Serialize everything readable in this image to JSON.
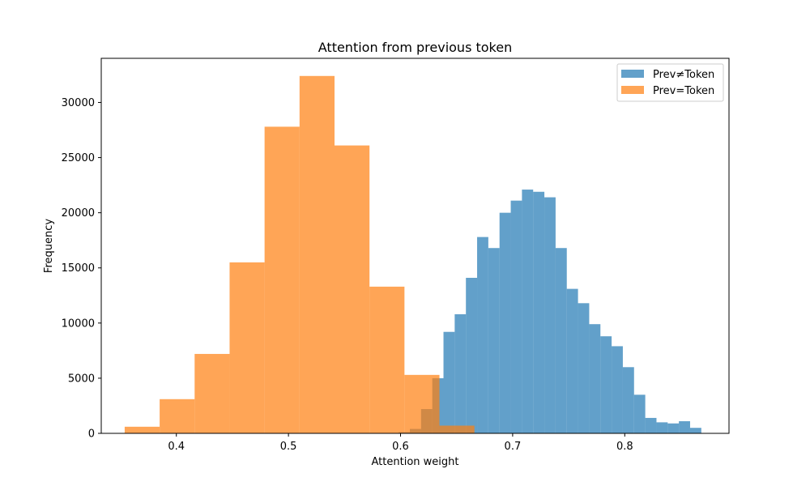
{
  "chart_data": {
    "type": "histogram",
    "title": "Attention from previous token",
    "xlabel": "Attention weight",
    "ylabel": "Frequency",
    "xlim": [
      0.333,
      0.893
    ],
    "ylim": [
      0,
      34000
    ],
    "x_ticks": [
      0.4,
      0.5,
      0.6,
      0.7,
      0.8
    ],
    "x_tick_labels": [
      "0.4",
      "0.5",
      "0.6",
      "0.7",
      "0.8"
    ],
    "y_ticks": [
      0,
      5000,
      10000,
      15000,
      20000,
      25000,
      30000
    ],
    "y_tick_labels": [
      "0",
      "5000",
      "10000",
      "15000",
      "20000",
      "25000",
      "30000"
    ],
    "grid": false,
    "legend_position": "top-right",
    "series": [
      {
        "name": "Prev≠Token",
        "color": "#1f77b4",
        "opacity": 0.7,
        "bin_edges": [
          0.5983,
          0.6083,
          0.6183,
          0.6283,
          0.6383,
          0.6483,
          0.6583,
          0.6683,
          0.6783,
          0.6883,
          0.6983,
          0.7083,
          0.7183,
          0.7283,
          0.7383,
          0.7483,
          0.7583,
          0.7683,
          0.7783,
          0.7883,
          0.7983,
          0.8083,
          0.8183,
          0.8283,
          0.8383,
          0.8483,
          0.8583,
          0.8683
        ],
        "counts": [
          100,
          400,
          2200,
          5000,
          9200,
          10800,
          14100,
          17800,
          16800,
          20000,
          21100,
          22100,
          21900,
          21400,
          16800,
          13100,
          11800,
          9900,
          8800,
          7900,
          6000,
          3500,
          1400,
          1000,
          900,
          1100,
          500
        ]
      },
      {
        "name": "Prev=Token",
        "color": "#ff7f0e",
        "opacity": 0.7,
        "bin_edges": [
          0.3539,
          0.3851,
          0.4163,
          0.4475,
          0.4787,
          0.5099,
          0.5411,
          0.5723,
          0.6035,
          0.6347,
          0.6659
        ],
        "counts": [
          600,
          3100,
          7200,
          15500,
          27800,
          32400,
          26100,
          13300,
          5300,
          700
        ]
      }
    ]
  }
}
